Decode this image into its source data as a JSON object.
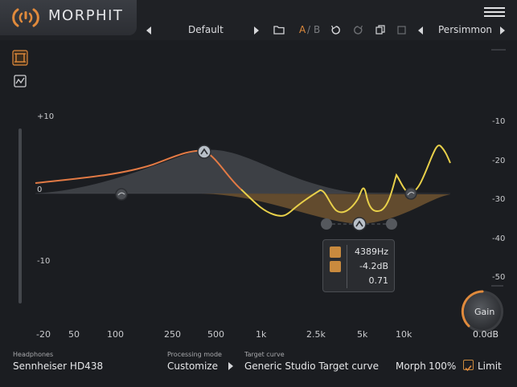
{
  "app": {
    "title": "MORPHIT"
  },
  "toolbar": {
    "preset": "Default",
    "ab_a": "A",
    "ab_sep": "/",
    "ab_b": "B",
    "target_preset": "Persimmon"
  },
  "plot": {
    "db_left": [
      "+10",
      "0",
      "-10"
    ],
    "db_right": [
      "-10",
      "-20",
      "-30",
      "-40",
      "-50"
    ],
    "freq_labels": [
      "-20",
      "50",
      "100",
      "250",
      "500",
      "1k",
      "2.5k",
      "5k",
      "10k"
    ]
  },
  "tooltip": {
    "frequency": "4389Hz",
    "gain": "-4.2dB",
    "q": "0.71"
  },
  "gain": {
    "label": "Gain",
    "value": "0.0dB"
  },
  "footer": {
    "headphones_label": "Headphones",
    "headphones_value": "Sennheiser HD438",
    "processing_label": "Processing mode",
    "processing_value": "Customize",
    "target_label": "Target curve",
    "target_value": "Generic Studio Target curve",
    "morph_label": "Morph",
    "morph_value": "100%",
    "limit_label": "Limit",
    "limit_checked": true
  },
  "colors": {
    "accent": "#e08a3c",
    "curve_yellow": "#e8d04a",
    "curve_orange": "#e27a45"
  }
}
